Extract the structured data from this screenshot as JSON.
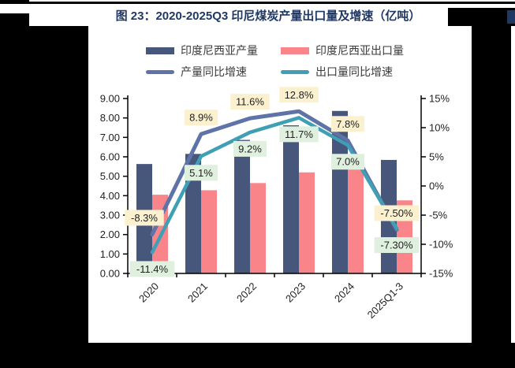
{
  "figure": {
    "title": "图 23：2020-2025Q3 印尼煤炭产量出口量及增速（亿吨）"
  },
  "legend": {
    "items": [
      {
        "label": "印度尼西亚产量",
        "swatch": "bar",
        "color": "#47567B"
      },
      {
        "label": "印度尼西亚出口量",
        "swatch": "bar",
        "color": "#F9858B"
      },
      {
        "label": "产量同比增速",
        "swatch": "line",
        "color": "#6073A8"
      },
      {
        "label": "出口量同比增速",
        "swatch": "line",
        "color": "#3FA0B5"
      }
    ]
  },
  "chart_data": {
    "type": "bar+line",
    "title": "图 23：2020-2025Q3 印尼煤炭产量出口量及增速（亿吨）",
    "categories": [
      "2020",
      "2021",
      "2022",
      "2023",
      "2024",
      "2025Q1-3"
    ],
    "bar_series": [
      {
        "name": "印度尼西亚产量",
        "color": "#47567B",
        "axis": "left",
        "values": [
          5.63,
          6.15,
          6.87,
          7.62,
          8.36,
          5.84
        ]
      },
      {
        "name": "印度尼西亚出口量",
        "color": "#F9858B",
        "axis": "left",
        "values": [
          4.05,
          4.28,
          4.65,
          5.2,
          5.35,
          3.76
        ]
      }
    ],
    "line_series": [
      {
        "name": "产量同比增速",
        "color": "#6073A8",
        "axis": "right",
        "values_pct": [
          -8.3,
          8.9,
          11.6,
          12.8,
          7.8,
          -7.5
        ],
        "labels": [
          "-8.3%",
          "8.9%",
          "11.6%",
          "12.8%",
          "7.8%",
          "-7.50%"
        ],
        "label_bg": "#FCF1CF",
        "label_side": "above",
        "label_dx": [
          -10,
          0,
          0,
          0,
          0,
          0
        ]
      },
      {
        "name": "出口量同比增速",
        "color": "#3FA0B5",
        "axis": "right",
        "values_pct": [
          -11.4,
          5.1,
          9.2,
          11.7,
          7.0,
          -7.3
        ],
        "labels": [
          "-11.4%",
          "5.1%",
          "9.2%",
          "11.7%",
          "7.0%",
          "-7.30%"
        ],
        "label_bg": "#DFF0DE",
        "label_side": "below",
        "label_dx": [
          0,
          0,
          0,
          0,
          0,
          0
        ]
      }
    ],
    "left_axis": {
      "min": 0,
      "max": 9,
      "ticks": [
        "0.00",
        "1.00",
        "2.00",
        "3.00",
        "4.00",
        "5.00",
        "6.00",
        "7.00",
        "8.00",
        "9.00"
      ]
    },
    "right_axis": {
      "min": -15,
      "max": 15,
      "ticks": [
        "-15%",
        "-10%",
        "-5%",
        "0%",
        "5%",
        "10%",
        "15%"
      ]
    },
    "grid": false,
    "legend_position": "top",
    "units_left": "亿吨",
    "units_right": "%"
  }
}
